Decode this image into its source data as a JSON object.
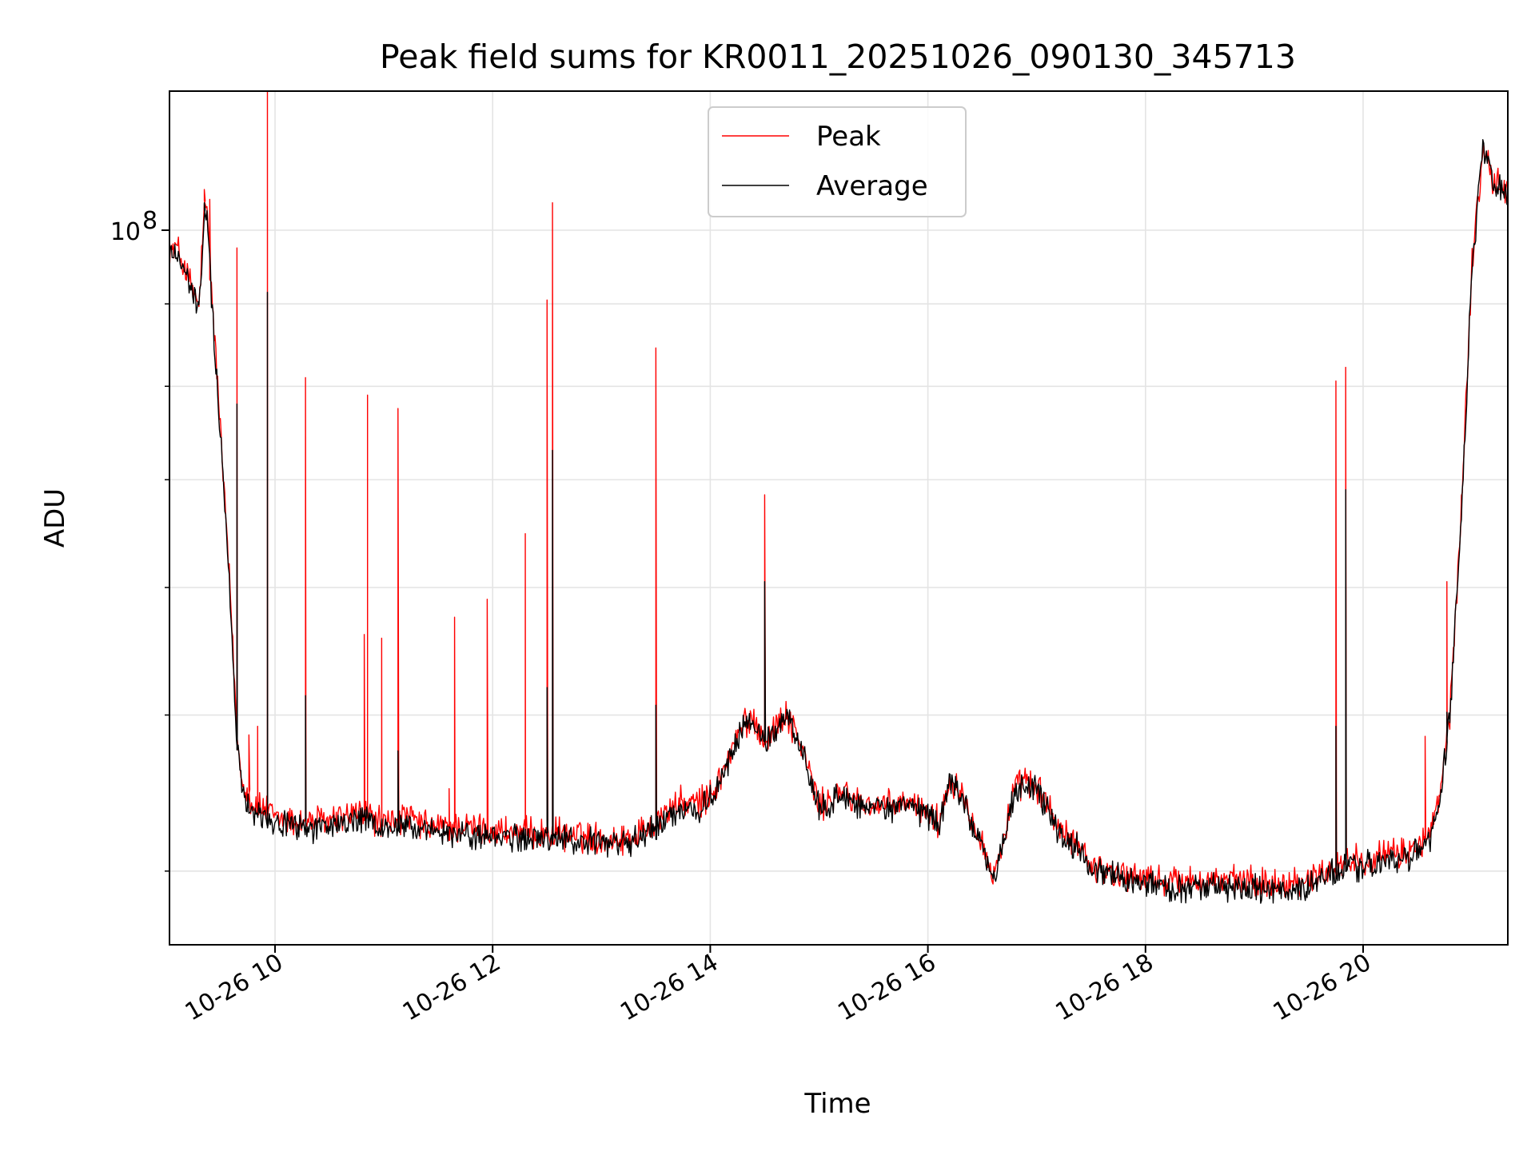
{
  "chart_data": {
    "type": "line",
    "title": "Peak field sums for KR0011_20251026_090130_345713",
    "xlabel": "Time",
    "ylabel": "ADU",
    "yscale": "log",
    "xlim": [
      9.03,
      21.33
    ],
    "ylim": [
      36000000,
      122000000
    ],
    "grid": true,
    "legend_position": "top-center",
    "x_ticks": [
      {
        "value": 10,
        "label": "10-26 10"
      },
      {
        "value": 12,
        "label": "10-26 12"
      },
      {
        "value": 14,
        "label": "10-26 14"
      },
      {
        "value": 16,
        "label": "10-26 16"
      },
      {
        "value": 18,
        "label": "10-26 18"
      },
      {
        "value": 20,
        "label": "10-26 20"
      }
    ],
    "y_major_ticks": [
      {
        "value": 100000000,
        "label_base": "10",
        "label_exp": "8"
      }
    ],
    "y_minor_ticks": [
      40000000,
      50000000,
      60000000,
      70000000,
      80000000,
      90000000
    ],
    "series": [
      {
        "name": "Peak",
        "color": "#ff0000",
        "x": [
          9.03,
          9.1,
          9.2,
          9.3,
          9.35,
          9.38,
          9.42,
          9.5,
          9.6,
          9.65,
          9.7,
          9.8,
          9.9,
          10.0,
          10.2,
          10.5,
          10.8,
          11.0,
          11.2,
          11.4,
          11.7,
          12.0,
          12.3,
          12.6,
          12.9,
          13.1,
          13.3,
          13.5,
          13.7,
          13.85,
          14.0,
          14.1,
          14.2,
          14.3,
          14.4,
          14.5,
          14.6,
          14.7,
          14.8,
          14.9,
          15.0,
          15.2,
          15.4,
          15.6,
          15.8,
          16.0,
          16.1,
          16.2,
          16.3,
          16.4,
          16.5,
          16.6,
          16.7,
          16.8,
          16.9,
          17.0,
          17.1,
          17.2,
          17.3,
          17.4,
          17.5,
          17.6,
          17.8,
          18.0,
          18.3,
          18.6,
          18.9,
          19.2,
          19.5,
          19.8,
          20.1,
          20.4,
          20.6,
          20.7,
          20.8,
          20.9,
          21.0,
          21.1,
          21.2,
          21.33
        ],
        "y": [
          97000000,
          97500000,
          93500000,
          89500000,
          103000000,
          102000000,
          91000000,
          75000000,
          57500000,
          48500000,
          45500000,
          44000000,
          43700000,
          43200000,
          42900000,
          43000000,
          43500000,
          42800000,
          43200000,
          42600000,
          42600000,
          42400000,
          42200000,
          42200000,
          42000000,
          41900000,
          42000000,
          43000000,
          44100000,
          44000000,
          44500000,
          45800000,
          47600000,
          49300000,
          49800000,
          48300000,
          49100000,
          50200000,
          48500000,
          46500000,
          43800000,
          44800000,
          44100000,
          43800000,
          44100000,
          43600000,
          42800000,
          45700000,
          45000000,
          43200000,
          41800000,
          39500000,
          42100000,
          44900000,
          45500000,
          45100000,
          44000000,
          42600000,
          41700000,
          41600000,
          40300000,
          40100000,
          39800000,
          39600000,
          39400000,
          39500000,
          39400000,
          39300000,
          39500000,
          40500000,
          40800000,
          41100000,
          42000000,
          44200000,
          50300000,
          66500000,
          95000000,
          112500000,
          107000000,
          106000000
        ],
        "spikes": [
          {
            "x": 9.35,
            "y": 106000000
          },
          {
            "x": 9.4,
            "y": 104500000
          },
          {
            "x": 9.65,
            "y": 97500000
          },
          {
            "x": 9.76,
            "y": 48600000
          },
          {
            "x": 9.84,
            "y": 49200000
          },
          {
            "x": 9.93,
            "y": 122000000
          },
          {
            "x": 10.28,
            "y": 81000000
          },
          {
            "x": 10.82,
            "y": 56100000
          },
          {
            "x": 10.85,
            "y": 79000000
          },
          {
            "x": 10.98,
            "y": 55800000
          },
          {
            "x": 11.13,
            "y": 77500000
          },
          {
            "x": 11.6,
            "y": 45000000
          },
          {
            "x": 11.65,
            "y": 57500000
          },
          {
            "x": 11.95,
            "y": 59000000
          },
          {
            "x": 12.3,
            "y": 64800000
          },
          {
            "x": 12.5,
            "y": 90500000
          },
          {
            "x": 12.55,
            "y": 104000000
          },
          {
            "x": 13.5,
            "y": 84500000
          },
          {
            "x": 14.5,
            "y": 68500000
          },
          {
            "x": 19.75,
            "y": 80600000
          },
          {
            "x": 19.84,
            "y": 82200000
          },
          {
            "x": 20.57,
            "y": 48500000
          },
          {
            "x": 20.77,
            "y": 60500000
          }
        ]
      },
      {
        "name": "Average",
        "color": "#000000",
        "x": [
          9.03,
          9.1,
          9.2,
          9.3,
          9.35,
          9.38,
          9.42,
          9.5,
          9.6,
          9.65,
          9.7,
          9.8,
          9.9,
          10.0,
          10.2,
          10.5,
          10.8,
          11.0,
          11.2,
          11.4,
          11.7,
          12.0,
          12.3,
          12.6,
          12.9,
          13.1,
          13.3,
          13.5,
          13.7,
          13.85,
          14.0,
          14.1,
          14.2,
          14.3,
          14.4,
          14.5,
          14.6,
          14.7,
          14.8,
          14.9,
          15.0,
          15.2,
          15.4,
          15.6,
          15.8,
          16.0,
          16.1,
          16.2,
          16.3,
          16.4,
          16.5,
          16.6,
          16.7,
          16.8,
          16.9,
          17.0,
          17.1,
          17.2,
          17.3,
          17.4,
          17.5,
          17.6,
          17.8,
          18.0,
          18.3,
          18.6,
          18.9,
          19.2,
          19.5,
          19.8,
          20.1,
          20.4,
          20.6,
          20.7,
          20.8,
          20.9,
          21.0,
          21.1,
          21.2,
          21.33
        ],
        "y": [
          96500000,
          97000000,
          93000000,
          89000000,
          102000000,
          101000000,
          90000000,
          74500000,
          57000000,
          48000000,
          45000000,
          43600000,
          43300000,
          42900000,
          42600000,
          42600000,
          43100000,
          42400000,
          42800000,
          42200000,
          42200000,
          42000000,
          41900000,
          41900000,
          41700000,
          41600000,
          41700000,
          42600000,
          43700000,
          43700000,
          44200000,
          45500000,
          47300000,
          49000000,
          49600000,
          48000000,
          48900000,
          50000000,
          48300000,
          46300000,
          43600000,
          44600000,
          43900000,
          43600000,
          43900000,
          43400000,
          42600000,
          45500000,
          44800000,
          43000000,
          41600000,
          39300000,
          41900000,
          44700000,
          45300000,
          44900000,
          43800000,
          42400000,
          41500000,
          41400000,
          40100000,
          39900000,
          39500000,
          39300000,
          39000000,
          39100000,
          39000000,
          38900000,
          39100000,
          40100000,
          40400000,
          40700000,
          41600000,
          43800000,
          50000000,
          66000000,
          94500000,
          112000000,
          106500000,
          105500000
        ],
        "spikes": [
          {
            "x": 9.35,
            "y": 104000000
          },
          {
            "x": 9.65,
            "y": 78000000
          },
          {
            "x": 9.93,
            "y": 91500000
          },
          {
            "x": 10.28,
            "y": 51400000
          },
          {
            "x": 11.13,
            "y": 47500000
          },
          {
            "x": 12.5,
            "y": 52000000
          },
          {
            "x": 12.55,
            "y": 73000000
          },
          {
            "x": 13.5,
            "y": 50700000
          },
          {
            "x": 14.5,
            "y": 60500000
          },
          {
            "x": 19.75,
            "y": 49200000
          },
          {
            "x": 19.84,
            "y": 69000000
          },
          {
            "x": 20.77,
            "y": 50200000
          }
        ]
      }
    ]
  }
}
